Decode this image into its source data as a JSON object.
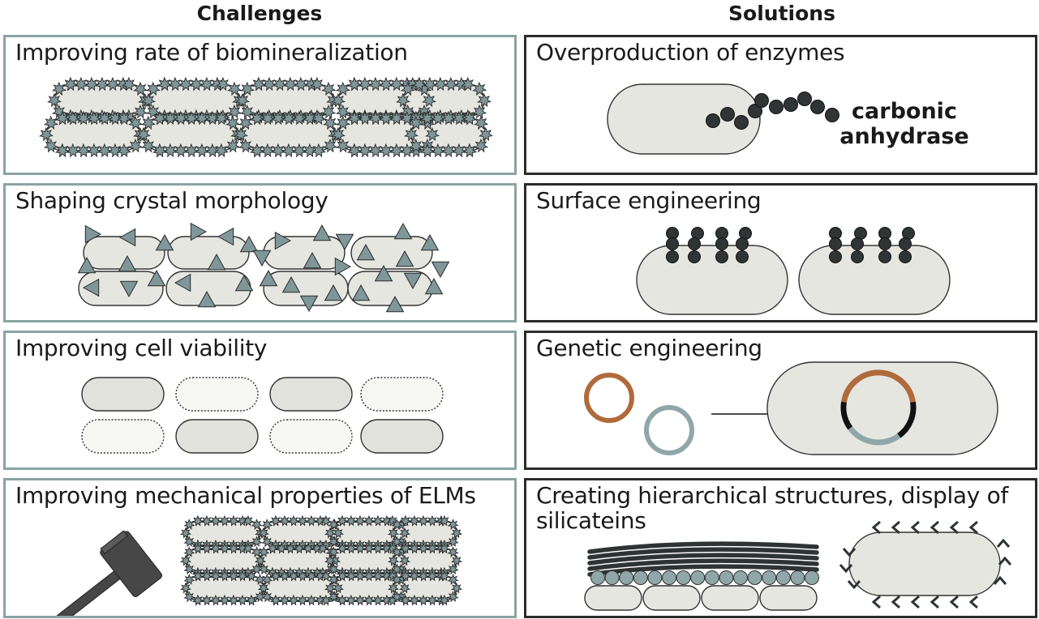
{
  "headers": {
    "challenges": "Challenges",
    "solutions": "Solutions"
  },
  "challenges": [
    {
      "label": "Improving rate of biomineralization"
    },
    {
      "label": "Shaping crystal morphology"
    },
    {
      "label": "Improving cell viability"
    },
    {
      "label": "Improving mechanical properties of ELMs"
    }
  ],
  "solutions": [
    {
      "label": "Overproduction of enzymes",
      "annotation_line1": "carbonic",
      "annotation_line2": "anhydrase"
    },
    {
      "label": "Surface engineering"
    },
    {
      "label": "Genetic engineering"
    },
    {
      "label_line1": "Creating hierarchical structures, display of",
      "label_line2": "silicateins"
    }
  ],
  "colors": {
    "challenge_border": "#8aa3a4",
    "solution_border": "#2b2b2b",
    "cell_fill": "#e6e6e1",
    "crystal_fill": "#7f9799",
    "dark": "#2f3535",
    "plasmid_brown": "#b06a3b",
    "plasmid_teal": "#8fa7a8"
  },
  "icons": [
    "hammer-icon",
    "arrow-icon"
  ]
}
